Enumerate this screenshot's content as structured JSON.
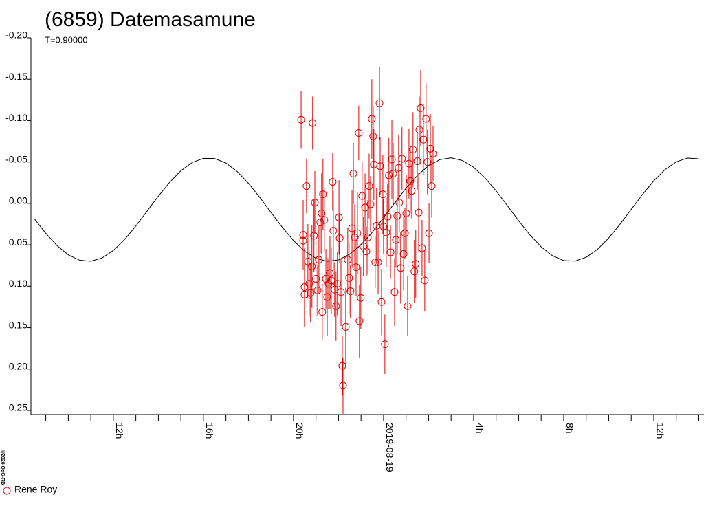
{
  "chart_data": {
    "type": "scatter",
    "title": "(6859) Datemasamune",
    "subtitle": "T=0.90000",
    "credit": "©2020 OdG-RB",
    "xlim": [
      -15.66,
      14.23
    ],
    "ylim": [
      -0.2,
      0.25
    ],
    "y_inverted": true,
    "xticks": [
      {
        "value": -12,
        "label": "12h"
      },
      {
        "value": -8,
        "label": "16h"
      },
      {
        "value": -4,
        "label": "20h"
      },
      {
        "value": 0,
        "label": "2019-08-19"
      },
      {
        "value": 4,
        "label": "4h"
      },
      {
        "value": 8,
        "label": "8h"
      },
      {
        "value": 12,
        "label": "12h"
      }
    ],
    "xminorticks": [
      -15,
      -14,
      -13,
      -11,
      -10,
      -9,
      -7,
      -6,
      -5,
      -3,
      -2,
      -1,
      1,
      2,
      3,
      5,
      6,
      7,
      9,
      10,
      11,
      13,
      14
    ],
    "yticks": [
      {
        "value": -0.2,
        "label": "-0.20"
      },
      {
        "value": -0.15,
        "label": "-0.15"
      },
      {
        "value": -0.1,
        "label": "-0.10"
      },
      {
        "value": -0.05,
        "label": "-0.05"
      },
      {
        "value": 0,
        "label": "0.00"
      },
      {
        "value": 0.05,
        "label": "0.05"
      },
      {
        "value": 0.1,
        "label": "0.10"
      },
      {
        "value": 0.15,
        "label": "0.15"
      },
      {
        "value": 0.2,
        "label": "0.20"
      },
      {
        "value": 0.25,
        "label": "0.25"
      }
    ],
    "legend": "bottom-left",
    "series": [
      {
        "name": "Rene Roy",
        "color": "#e00000",
        "x": [
          -3.66,
          -3.57,
          -3.57,
          -3.51,
          -3.51,
          -3.42,
          -3.36,
          -3.3,
          -3.24,
          -3.18,
          -3.15,
          -3.09,
          -3.05,
          -3.0,
          -2.93,
          -2.87,
          -2.81,
          -2.75,
          -2.72,
          -2.69,
          -2.63,
          -2.56,
          -2.5,
          -2.44,
          -2.38,
          -2.32,
          -2.26,
          -2.23,
          -2.17,
          -2.11,
          -2.05,
          -1.98,
          -1.95,
          -1.89,
          -1.83,
          -1.8,
          -1.68,
          -1.59,
          -1.53,
          -1.47,
          -1.4,
          -1.34,
          -1.28,
          -1.22,
          -1.16,
          -1.1,
          -1.07,
          -1.01,
          -0.95,
          -0.89,
          -0.82,
          -0.76,
          -0.7,
          -0.64,
          -0.58,
          -0.52,
          -0.46,
          -0.43,
          -0.37,
          -0.31,
          -0.24,
          -0.18,
          -0.15,
          -0.09,
          -0.03,
          0.0,
          0.06,
          0.12,
          0.18,
          0.24,
          0.31,
          0.37,
          0.43,
          0.49,
          0.55,
          0.61,
          0.67,
          0.7,
          0.76,
          0.82,
          0.89,
          0.95,
          1.01,
          1.07,
          1.13,
          1.19,
          1.25,
          1.31,
          1.37,
          1.43,
          1.5,
          1.56,
          1.59,
          1.65,
          1.71,
          1.77,
          1.83,
          1.89,
          1.95,
          2.02,
          2.08,
          2.14,
          2.2
        ],
        "values": [
          -0.101,
          0.038,
          0.045,
          0.101,
          0.11,
          -0.021,
          0.07,
          0.097,
          0.108,
          0.076,
          -0.097,
          0.039,
          -0.001,
          0.091,
          0.105,
          0.068,
          0.023,
          0.012,
          0.131,
          -0.011,
          0.02,
          0.091,
          0.113,
          0.097,
          0.084,
          0.093,
          -0.026,
          0.033,
          0.104,
          0.124,
          0.097,
          0.017,
          0.042,
          0.107,
          0.196,
          0.22,
          0.149,
          0.068,
          0.09,
          0.106,
          0.03,
          -0.036,
          0.041,
          0.077,
          0.036,
          -0.085,
          0.142,
          0.114,
          -0.009,
          0.052,
          0.005,
          0.058,
          0.041,
          -0.021,
          0.001,
          -0.102,
          -0.081,
          -0.047,
          0.071,
          0.027,
          0.071,
          -0.121,
          -0.045,
          0.119,
          -0.011,
          0.028,
          0.17,
          0.035,
          0.016,
          -0.034,
          0.059,
          -0.053,
          -0.036,
          0.107,
          0.044,
          0.015,
          -0.043,
          -0.001,
          0.078,
          -0.054,
          0.061,
          0.036,
          0.012,
          0.124,
          -0.048,
          -0.027,
          -0.015,
          -0.065,
          0.082,
          0.073,
          -0.051,
          0.011,
          -0.089,
          -0.115,
          0.054,
          -0.077,
          0.093,
          -0.102,
          -0.05,
          0.036,
          -0.066,
          -0.021,
          -0.06
        ],
        "errors": [
          0.035,
          0.042,
          0.03,
          0.048,
          0.038,
          0.033,
          0.045,
          0.04,
          0.036,
          0.05,
          0.032,
          0.044,
          0.038,
          0.046,
          0.03,
          0.041,
          0.037,
          0.049,
          0.034,
          0.043,
          0.039,
          0.036,
          0.047,
          0.031,
          0.044,
          0.04,
          0.035,
          0.048,
          0.033,
          0.042,
          0.038,
          0.045,
          0.03,
          0.041,
          0.036,
          0.034,
          0.047,
          0.039,
          0.043,
          0.032,
          0.046,
          0.037,
          0.04,
          0.035,
          0.049,
          0.033,
          0.044,
          0.038,
          0.042,
          0.036,
          0.041,
          0.03,
          0.045,
          0.039,
          0.034,
          0.048,
          0.037,
          0.043,
          0.031,
          0.046,
          0.038,
          0.044,
          0.035,
          0.04,
          0.047,
          0.033,
          0.036,
          0.042,
          0.039,
          0.045,
          0.032,
          0.048,
          0.037,
          0.041,
          0.034,
          0.046,
          0.04,
          0.035,
          0.043,
          0.038,
          0.044,
          0.031,
          0.047,
          0.036,
          0.042,
          0.039,
          0.033,
          0.045,
          0.038,
          0.041,
          0.035,
          0.048,
          0.04,
          0.046,
          0.034,
          0.043,
          0.037,
          0.044,
          0.039,
          0.036,
          0.042,
          0.038,
          0.033
        ]
      }
    ],
    "fit": {
      "color": "#000000",
      "x": [
        -15.5,
        -15,
        -14.5,
        -14,
        -13.5,
        -13,
        -12.5,
        -12,
        -11.5,
        -11,
        -10.5,
        -10,
        -9.5,
        -9,
        -8.5,
        -8,
        -7.5,
        -7,
        -6.5,
        -6,
        -5.5,
        -5,
        -4.5,
        -4,
        -3.5,
        -3,
        -2.5,
        -2,
        -1.5,
        -1,
        -0.5,
        0,
        0.5,
        1,
        1.5,
        2,
        2.5,
        3,
        3.5,
        4,
        4.5,
        5,
        5.5,
        6,
        6.5,
        7,
        7.5,
        8,
        8.5,
        9,
        9.5,
        10,
        10.5,
        11,
        11.5,
        12,
        12.5,
        13,
        13.5,
        14
      ],
      "values": [
        0.0188,
        0.0361,
        0.0509,
        0.0621,
        0.0685,
        0.0698,
        0.0658,
        0.0568,
        0.0436,
        0.0273,
        0.0093,
        -0.0088,
        -0.0255,
        -0.0394,
        -0.0494,
        -0.0544,
        -0.0542,
        -0.0488,
        -0.0385,
        -0.0243,
        -0.0074,
        0.0108,
        0.0287,
        0.0448,
        0.0577,
        0.0663,
        0.0699,
        0.0682,
        0.0613,
        0.0499,
        0.0348,
        0.0174,
        -0.0009,
        -0.0184,
        -0.0337,
        -0.0455,
        -0.0528,
        -0.055,
        -0.0518,
        -0.0436,
        -0.031,
        -0.0151,
        0.0027,
        0.0209,
        0.038,
        0.0524,
        0.0631,
        0.069,
        0.0696,
        0.065,
        0.0555,
        0.0418,
        0.0253,
        0.0072,
        -0.0108,
        -0.0273,
        -0.0408,
        -0.0502,
        -0.0547,
        -0.0539
      ]
    }
  }
}
